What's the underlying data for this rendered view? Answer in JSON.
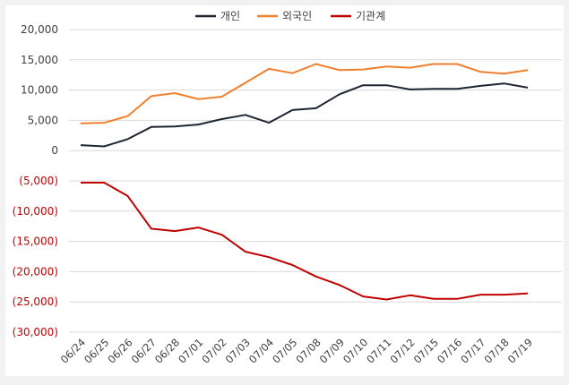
{
  "chart_data": {
    "type": "line",
    "categories": [
      "06/24",
      "06/25",
      "06/26",
      "06/27",
      "06/28",
      "07/01",
      "07/02",
      "07/03",
      "07/04",
      "07/05",
      "07/08",
      "07/09",
      "07/10",
      "07/11",
      "07/12",
      "07/15",
      "07/16",
      "07/17",
      "07/18",
      "07/19"
    ],
    "series": [
      {
        "name": "개인",
        "color": "#1f2633",
        "values": [
          900,
          700,
          1900,
          3900,
          4000,
          4300,
          5200,
          5900,
          4600,
          6700,
          7000,
          9300,
          10800,
          10800,
          10100,
          10200,
          10200,
          10700,
          11100,
          10400
        ]
      },
      {
        "name": "외국인",
        "color": "#f07f2e",
        "values": [
          4500,
          4600,
          5700,
          9000,
          9500,
          8500,
          8900,
          11200,
          13500,
          12800,
          14300,
          13300,
          13400,
          13900,
          13700,
          14300,
          14300,
          13000,
          12700,
          13300
        ]
      },
      {
        "name": "기관계",
        "color": "#c00000",
        "values": [
          -5300,
          -5300,
          -7500,
          -12900,
          -13300,
          -12700,
          -13900,
          -16700,
          -17600,
          -18900,
          -20800,
          -22200,
          -24100,
          -24600,
          -23900,
          -24500,
          -24500,
          -23800,
          -23800,
          -23600
        ]
      }
    ],
    "yticks": [
      20000,
      15000,
      10000,
      5000,
      0,
      -5000,
      -10000,
      -15000,
      -20000,
      -25000,
      -30000
    ],
    "ytick_labels": [
      "20,000",
      "15,000",
      "10,000",
      "5,000",
      "0",
      "(5,000)",
      "(10,000)",
      "(15,000)",
      "(20,000)",
      "(25,000)",
      "(30,000)"
    ],
    "ylim": [
      -30000,
      20000
    ],
    "negative_label_color": "#c00000",
    "grid": true,
    "legend": "top"
  }
}
